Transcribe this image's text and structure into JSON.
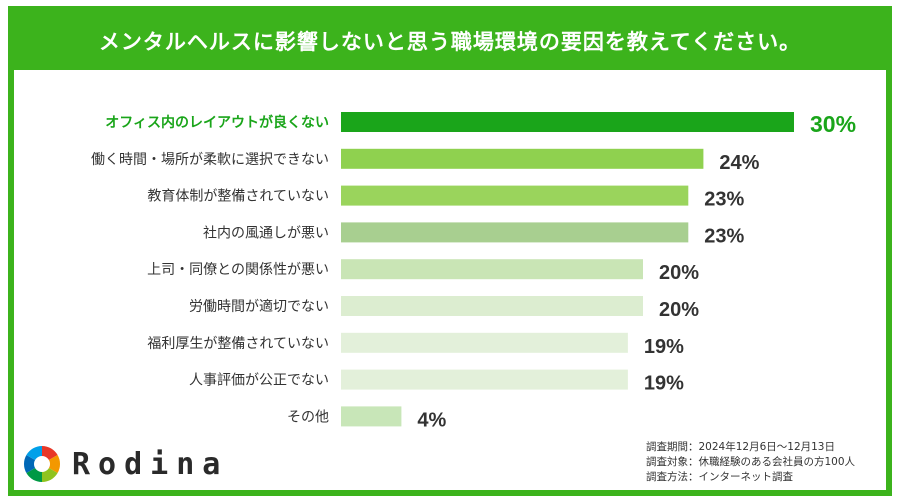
{
  "title": "メンタルヘルスに影響しないと思う職場環境の要因を教えてください。",
  "chart_data": {
    "type": "bar",
    "orientation": "horizontal",
    "categories": [
      "オフィス内のレイアウトが良くない",
      "働く時間・場所が柔軟に選択できない",
      "教育体制が整備されていない",
      "社内の風通しが悪い",
      "上司・同僚との関係性が悪い",
      "労働時間が適切でない",
      "福利厚生が整備されていない",
      "人事評価が公正でない",
      "その他"
    ],
    "values": [
      30,
      24,
      23,
      23,
      20,
      20,
      19,
      19,
      4
    ],
    "labels": [
      "30%",
      "24%",
      "23%",
      "23%",
      "20%",
      "20%",
      "19%",
      "19%",
      "4%"
    ],
    "unit": "%",
    "xlim": [
      0,
      30
    ],
    "colors": [
      "#1aa51a",
      "#8fd14f",
      "#9ad45c",
      "#a8cf90",
      "#c9e5b5",
      "#dcedd0",
      "#e3f0da",
      "#e3f0da",
      "#c8e6b8"
    ],
    "highlight_color": "#1aa51a",
    "label_color": "#333333",
    "grid": false,
    "legend": "none"
  },
  "brand": {
    "name": "Rodina"
  },
  "survey": [
    "調査期間：2024年12月6日～12月13日",
    "調査対象：休職経験のある会社員の方100人",
    "調査方法：インターネット調査"
  ]
}
